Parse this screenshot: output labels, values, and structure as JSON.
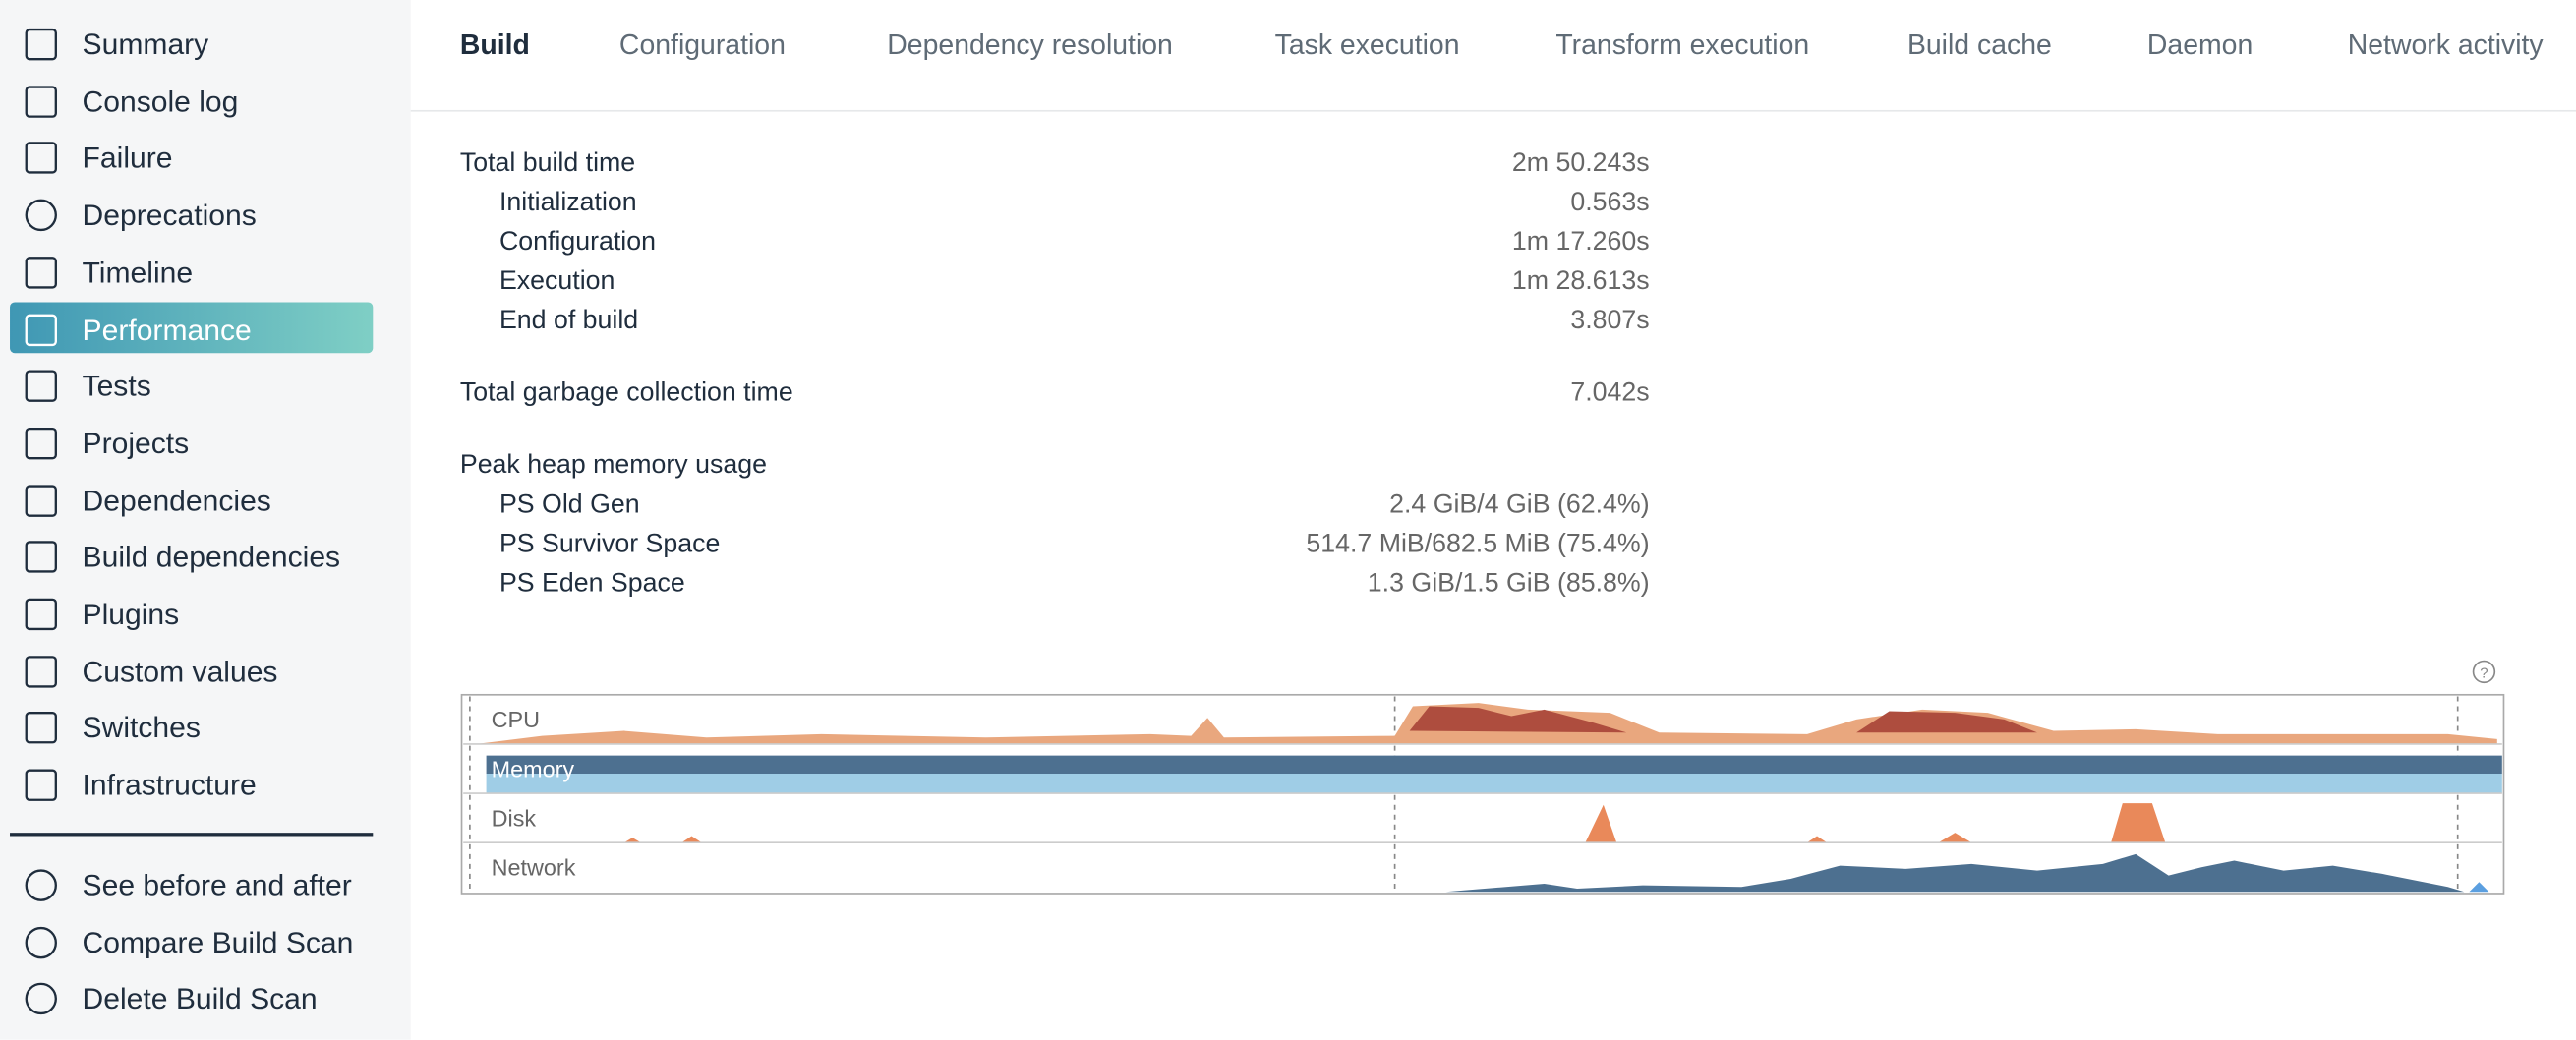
{
  "sidebar": {
    "items": [
      "Summary",
      "Console log",
      "Failure",
      "Deprecations",
      "Timeline",
      "Performance",
      "Tests",
      "Projects",
      "Dependencies",
      "Build dependencies",
      "Plugins",
      "Custom values",
      "Switches",
      "Infrastructure"
    ],
    "active": "Performance",
    "actions": [
      "See before and after",
      "Compare Build Scan",
      "Delete Build Scan"
    ]
  },
  "tabs": [
    "Build",
    "Configuration",
    "Dependency resolution",
    "Task execution",
    "Transform execution",
    "Build cache",
    "Daemon",
    "Network activity"
  ],
  "summary": [
    {
      "label": "Total build time",
      "value": "2m 50.243s",
      "items": [
        {
          "label": "Initialization",
          "value": "0.563s"
        },
        {
          "label": "Configuration",
          "value": "1m 17.260s"
        },
        {
          "label": "Execution",
          "value": "1m 28.613s"
        },
        {
          "label": "End of build",
          "value": "3.807s"
        }
      ]
    },
    {
      "label": "Total garbage collection time",
      "value": "7.042s",
      "items": []
    },
    {
      "label": "Peak heap memory usage",
      "items": [
        {
          "label": "PS Old Gen",
          "value": "2.4 GiB/4 GiB (62.4%)"
        },
        {
          "label": "PS Survivor Space",
          "value": "514.7 MiB/682.5 MiB (75.4%)"
        },
        {
          "label": "PS Eden Space",
          "value": "1.3 GiB/1.5 GiB (85.8%)"
        }
      ]
    }
  ],
  "timeline": {
    "lanes": [
      "CPU",
      "Memory",
      "Disk",
      "Network"
    ]
  }
}
